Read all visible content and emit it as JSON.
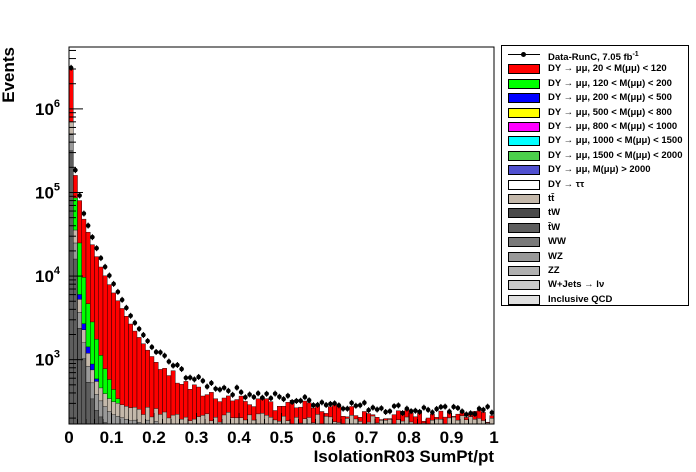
{
  "chart_data": {
    "type": "bar",
    "subtype": "stacked-histogram-log",
    "xlabel": "IsolationR03 SumPt/pt",
    "ylabel": "Events",
    "xlim": [
      0,
      1
    ],
    "ylim_log": [
      170,
      5500000
    ],
    "y_scale": "log",
    "x_ticks": [
      "0",
      "0.1",
      "0.2",
      "0.3",
      "0.4",
      "0.5",
      "0.6",
      "0.7",
      "0.8",
      "0.9",
      "1"
    ],
    "y_ticks": [
      {
        "value": 1000,
        "mantissa": "10",
        "exponent": "3"
      },
      {
        "value": 10000,
        "mantissa": "10",
        "exponent": "4"
      },
      {
        "value": 100000,
        "mantissa": "10",
        "exponent": "5"
      },
      {
        "value": 1000000,
        "mantissa": "10",
        "exponent": "6"
      }
    ],
    "n_bins": 100,
    "data_series": {
      "name": "Data-RunC, 7.05 fb",
      "name_sup": "-1",
      "anchors": [
        [
          0.005,
          3100000
        ],
        [
          0.015,
          185000
        ],
        [
          0.025,
          92000
        ],
        [
          0.035,
          56000
        ],
        [
          0.05,
          34000
        ],
        [
          0.07,
          18500
        ],
        [
          0.1,
          9000
        ],
        [
          0.15,
          3000
        ],
        [
          0.2,
          1300
        ],
        [
          0.25,
          800
        ],
        [
          0.3,
          550
        ],
        [
          0.4,
          400
        ],
        [
          0.5,
          340
        ],
        [
          0.6,
          300
        ],
        [
          0.7,
          270
        ],
        [
          0.8,
          250
        ],
        [
          0.9,
          240
        ],
        [
          1.0,
          240
        ]
      ]
    },
    "red_anchors": [
      [
        0.005,
        3000000
      ],
      [
        0.015,
        160000
      ],
      [
        0.025,
        80000
      ],
      [
        0.035,
        48000
      ],
      [
        0.05,
        28000
      ],
      [
        0.07,
        14500
      ],
      [
        0.1,
        7000
      ],
      [
        0.15,
        2400
      ],
      [
        0.2,
        1000
      ],
      [
        0.25,
        600
      ],
      [
        0.3,
        420
      ],
      [
        0.4,
        330
      ],
      [
        0.5,
        290
      ],
      [
        0.6,
        260
      ],
      [
        0.7,
        240
      ],
      [
        0.8,
        220
      ],
      [
        0.9,
        210
      ],
      [
        1.0,
        210
      ]
    ],
    "green_anchors": [
      [
        0.005,
        400000
      ],
      [
        0.02,
        40000
      ],
      [
        0.04,
        6000
      ],
      [
        0.06,
        2200
      ],
      [
        0.08,
        900
      ],
      [
        0.1,
        500
      ],
      [
        0.12,
        300
      ],
      [
        0.15,
        200
      ],
      [
        0.2,
        160
      ],
      [
        0.3,
        150
      ]
    ],
    "blue_anchors": [
      [
        0.005,
        100000
      ],
      [
        0.02,
        9000
      ],
      [
        0.04,
        1800
      ],
      [
        0.06,
        700
      ],
      [
        0.08,
        350
      ],
      [
        0.1,
        250
      ],
      [
        0.15,
        170
      ],
      [
        0.2,
        150
      ]
    ],
    "gray_anchors": [
      [
        0.005,
        700000
      ],
      [
        0.02,
        8000
      ],
      [
        0.04,
        1500
      ],
      [
        0.06,
        600
      ],
      [
        0.08,
        420
      ],
      [
        0.1,
        320
      ],
      [
        0.15,
        260
      ],
      [
        0.2,
        230
      ],
      [
        0.3,
        210
      ],
      [
        0.5,
        200
      ],
      [
        0.7,
        195
      ],
      [
        1.0,
        190
      ]
    ],
    "legend": [
      {
        "label": "Data-RunC, 7.05 fb",
        "sup": "-1",
        "kind": "marker",
        "color": "#000000"
      },
      {
        "label": "DY → μμ, 20 < M(μμ) <  120",
        "kind": "box",
        "color": "#ff0000"
      },
      {
        "label": "DY → μμ, 120 < M(μμ) <  200",
        "kind": "box",
        "color": "#00ff00"
      },
      {
        "label": "DY → μμ, 200 < M(μμ) <  500",
        "kind": "box",
        "color": "#0000ff"
      },
      {
        "label": "DY → μμ, 500 < M(μμ) <  800",
        "kind": "box",
        "color": "#ffff00"
      },
      {
        "label": "DY → μμ, 800 < M(μμ) < 1000",
        "kind": "box",
        "color": "#ff00ff"
      },
      {
        "label": "DY → μμ, 1000 < M(μμ) < 1500",
        "kind": "box",
        "color": "#00ffff"
      },
      {
        "label": "DY → μμ, 1500 < M(μμ) < 2000",
        "kind": "box",
        "color": "#4cd04c"
      },
      {
        "label": "DY → μμ, M(μμ) > 2000",
        "kind": "box",
        "color": "#5050d0"
      },
      {
        "label": "DY → ττ",
        "kind": "box",
        "color": "#ffffff"
      },
      {
        "label": "tt̄",
        "kind": "box",
        "color": "#c4b8aa"
      },
      {
        "label": "tW",
        "kind": "box",
        "color": "#4a4a4a"
      },
      {
        "label": "t̄W",
        "kind": "box",
        "color": "#5e5e5e"
      },
      {
        "label": "WW",
        "kind": "box",
        "color": "#7a7a7a"
      },
      {
        "label": "WZ",
        "kind": "box",
        "color": "#999999"
      },
      {
        "label": "ZZ",
        "kind": "box",
        "color": "#b0b0b0"
      },
      {
        "label": "W+Jets → lν",
        "kind": "box",
        "color": "#c8c8c8"
      },
      {
        "label": "Inclusive QCD",
        "kind": "box",
        "color": "#e0e0e0"
      }
    ]
  }
}
